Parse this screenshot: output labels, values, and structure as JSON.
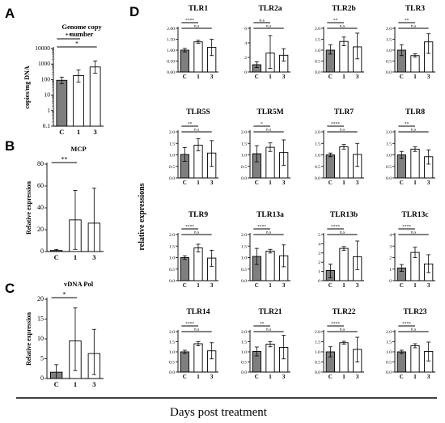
{
  "figure": {
    "panel_labels": [
      "A",
      "B",
      "C",
      "D"
    ],
    "x_caption": "Days post treatment",
    "d_ylabel": "relative expressions",
    "colors": {
      "control": "#7f7f7f",
      "treated": "#ffffff",
      "stroke": "#000000"
    }
  },
  "chart_data": [
    {
      "id": "A",
      "type": "bar",
      "title": "Genome copy number",
      "ylabel": "copies/mg DNA",
      "yscale": "log",
      "ylim": [
        0.1,
        10000
      ],
      "yticks": [
        0.1,
        1,
        10,
        100,
        1000,
        10000
      ],
      "ytick_labels": [
        "0.1",
        "1",
        "10",
        "100",
        "1000",
        "10000"
      ],
      "categories": [
        "C",
        "1",
        "3"
      ],
      "values": [
        90,
        180,
        650
      ],
      "errors": [
        [
          55,
          145
        ],
        [
          70,
          420
        ],
        [
          260,
          1600
        ]
      ],
      "annotations": [
        {
          "text": "**",
          "from": 0,
          "to": 1
        },
        {
          "text": "*",
          "from": 0,
          "to": 2
        }
      ]
    },
    {
      "id": "B",
      "type": "bar",
      "title": "MCP",
      "ylabel": "Relative expression",
      "ylim": [
        0,
        80
      ],
      "yticks": [
        0,
        20,
        40,
        60,
        80
      ],
      "ytick_labels": [
        "0",
        "20",
        "40",
        "60",
        "80"
      ],
      "categories": [
        "C",
        "1",
        "3"
      ],
      "values": [
        1,
        29,
        26
      ],
      "errors": [
        [
          0,
          2
        ],
        [
          2,
          56
        ],
        [
          0,
          58
        ]
      ],
      "annotations": [
        {
          "text": "**",
          "from": 0,
          "to": 1
        }
      ]
    },
    {
      "id": "C",
      "type": "bar",
      "title": "vDNA Pol",
      "ylabel": "Relative expression",
      "ylim": [
        0,
        20
      ],
      "yticks": [
        0,
        5,
        10,
        15,
        20
      ],
      "ytick_labels": [
        "0",
        "5",
        "10",
        "15",
        "20"
      ],
      "categories": [
        "C",
        "1",
        "3"
      ],
      "values": [
        1.6,
        9.5,
        6.3
      ],
      "errors": [
        [
          0,
          3.5
        ],
        [
          2,
          17.8
        ],
        [
          1,
          12.4
        ]
      ],
      "annotations": [
        {
          "text": "*",
          "from": 0,
          "to": 1
        }
      ]
    },
    {
      "id": "D1",
      "type": "bar",
      "title": "TLR1",
      "ylim": [
        0,
        2.0
      ],
      "yticks": [
        0,
        0.5,
        1.0,
        1.5,
        2.0
      ],
      "ytick_labels": [
        "0.00",
        "0.50",
        "1.00",
        "1.50",
        "2.00"
      ],
      "categories": [
        "C",
        "1",
        "3"
      ],
      "values": [
        1.0,
        1.38,
        1.13
      ],
      "errors": [
        [
          0.92,
          1.08
        ],
        [
          1.32,
          1.45
        ],
        [
          0.75,
          1.5
        ]
      ],
      "annotations": [
        {
          "text": "****",
          "from": 0,
          "to": 1
        },
        {
          "text": "n.s",
          "from": 0,
          "to": 2
        }
      ]
    },
    {
      "id": "D2",
      "type": "bar",
      "title": "TLR2a",
      "ylim": [
        0,
        6
      ],
      "yticks": [
        0,
        2,
        4,
        6
      ],
      "ytick_labels": [
        "0",
        "2",
        "4",
        "6"
      ],
      "categories": [
        "C",
        "1",
        "3"
      ],
      "values": [
        1.0,
        2.6,
        2.3
      ],
      "errors": [
        [
          0.6,
          1.4
        ],
        [
          0.5,
          5.0
        ],
        [
          1.5,
          3.2
        ]
      ],
      "annotations": [
        {
          "text": "n.s",
          "from": 0,
          "to": 1
        },
        {
          "text": "n.s",
          "from": 0,
          "to": 2
        }
      ]
    },
    {
      "id": "D3",
      "type": "bar",
      "title": "TLR2b",
      "ylim": [
        0,
        2.0
      ],
      "yticks": [
        0,
        0.5,
        1.0,
        1.5,
        2.0
      ],
      "ytick_labels": [
        "0.0",
        "0.5",
        "1.0",
        "1.5",
        "2.0"
      ],
      "categories": [
        "C",
        "1",
        "3"
      ],
      "values": [
        1.0,
        1.4,
        1.15
      ],
      "errors": [
        [
          0.82,
          1.25
        ],
        [
          1.2,
          1.6
        ],
        [
          0.6,
          1.78
        ]
      ],
      "annotations": [
        {
          "text": "**",
          "from": 0,
          "to": 1
        },
        {
          "text": "n.s",
          "from": 0,
          "to": 2
        }
      ]
    },
    {
      "id": "D4",
      "type": "bar",
      "title": "TLR3",
      "ylim": [
        0,
        2.0
      ],
      "yticks": [
        0,
        0.5,
        1.0,
        1.5,
        2.0
      ],
      "ytick_labels": [
        "0.0",
        "0.5",
        "1.0",
        "1.5",
        "2.0"
      ],
      "categories": [
        "C",
        "1",
        "3"
      ],
      "values": [
        1.0,
        0.75,
        1.38
      ],
      "errors": [
        [
          0.75,
          1.25
        ],
        [
          0.68,
          0.83
        ],
        [
          0.85,
          1.75
        ]
      ],
      "annotations": [
        {
          "text": "**",
          "from": 0,
          "to": 1
        },
        {
          "text": "n.s",
          "from": 0,
          "to": 2
        }
      ]
    },
    {
      "id": "D5",
      "type": "bar",
      "title": "TLR5S",
      "ylim": [
        0,
        2.0
      ],
      "yticks": [
        0,
        0.5,
        1.0,
        1.5,
        2.0
      ],
      "ytick_labels": [
        "0.0",
        "0.5",
        "1.0",
        "1.5",
        "2.0"
      ],
      "categories": [
        "C",
        "1",
        "3"
      ],
      "values": [
        1.02,
        1.42,
        1.08
      ],
      "errors": [
        [
          0.72,
          1.32
        ],
        [
          1.18,
          1.7
        ],
        [
          0.5,
          1.62
        ]
      ],
      "annotations": [
        {
          "text": "**",
          "from": 0,
          "to": 1
        },
        {
          "text": "n.s",
          "from": 0,
          "to": 2
        }
      ]
    },
    {
      "id": "D6",
      "type": "bar",
      "title": "TLR5M",
      "ylim": [
        0,
        2.0
      ],
      "yticks": [
        0,
        0.5,
        1.0,
        1.5,
        2.0
      ],
      "ytick_labels": [
        "0.0",
        "0.5",
        "1.0",
        "1.5",
        "2.0"
      ],
      "categories": [
        "C",
        "1",
        "3"
      ],
      "values": [
        1.05,
        1.33,
        1.1
      ],
      "errors": [
        [
          0.7,
          1.4
        ],
        [
          1.15,
          1.52
        ],
        [
          0.55,
          1.65
        ]
      ],
      "annotations": [
        {
          "text": "*",
          "from": 0,
          "to": 1
        },
        {
          "text": "n.s",
          "from": 0,
          "to": 2
        }
      ]
    },
    {
      "id": "D7",
      "type": "bar",
      "title": "TLR7",
      "ylim": [
        0,
        2.0
      ],
      "yticks": [
        0,
        0.5,
        1.0,
        1.5,
        2.0
      ],
      "ytick_labels": [
        "0.0",
        "0.5",
        "1.0",
        "1.5",
        "2.0"
      ],
      "categories": [
        "C",
        "1",
        "3"
      ],
      "values": [
        1.0,
        1.35,
        1.02
      ],
      "errors": [
        [
          0.92,
          1.08
        ],
        [
          1.25,
          1.45
        ],
        [
          0.5,
          1.5
        ]
      ],
      "annotations": [
        {
          "text": "****",
          "from": 0,
          "to": 1
        },
        {
          "text": "n.s",
          "from": 0,
          "to": 2
        }
      ]
    },
    {
      "id": "D8",
      "type": "bar",
      "title": "TLR8",
      "ylim": [
        0,
        2.0
      ],
      "yticks": [
        0,
        0.5,
        1.0,
        1.5,
        2.0
      ],
      "ytick_labels": [
        "0.0",
        "0.5",
        "1.0",
        "1.5",
        "2.0"
      ],
      "categories": [
        "C",
        "1",
        "3"
      ],
      "values": [
        1.0,
        1.25,
        0.92
      ],
      "errors": [
        [
          0.85,
          1.15
        ],
        [
          1.15,
          1.35
        ],
        [
          0.6,
          1.22
        ]
      ],
      "annotations": [
        {
          "text": "**",
          "from": 0,
          "to": 1
        },
        {
          "text": "n.s",
          "from": 0,
          "to": 2
        }
      ]
    },
    {
      "id": "D9",
      "type": "bar",
      "title": "TLR9",
      "ylim": [
        0,
        2.0
      ],
      "yticks": [
        0,
        0.5,
        1.0,
        1.5,
        2.0
      ],
      "ytick_labels": [
        "0.0",
        "0.5",
        "1.0",
        "1.5",
        "2.0"
      ],
      "categories": [
        "C",
        "1",
        "3"
      ],
      "values": [
        1.0,
        1.42,
        0.98
      ],
      "errors": [
        [
          0.92,
          1.08
        ],
        [
          1.25,
          1.58
        ],
        [
          0.62,
          1.32
        ]
      ],
      "annotations": [
        {
          "text": "****",
          "from": 0,
          "to": 1
        },
        {
          "text": "n.s",
          "from": 0,
          "to": 2
        }
      ]
    },
    {
      "id": "D10",
      "type": "bar",
      "title": "TLR13a",
      "ylim": [
        0,
        2.0
      ],
      "yticks": [
        0,
        0.5,
        1.0,
        1.5,
        2.0
      ],
      "ytick_labels": [
        "0.0",
        "0.5",
        "1.0",
        "1.5",
        "2.0"
      ],
      "categories": [
        "C",
        "1",
        "3"
      ],
      "values": [
        1.05,
        1.28,
        1.08
      ],
      "errors": [
        [
          0.7,
          1.4
        ],
        [
          1.2,
          1.36
        ],
        [
          0.6,
          1.55
        ]
      ],
      "annotations": [
        {
          "text": "****",
          "from": 0,
          "to": 1
        },
        {
          "text": "n.s",
          "from": 0,
          "to": 2
        }
      ]
    },
    {
      "id": "D11",
      "type": "bar",
      "title": "TLR13b",
      "ylim": [
        0,
        5
      ],
      "yticks": [
        0,
        1,
        2,
        3,
        4,
        5
      ],
      "ytick_labels": [
        "0",
        "1",
        "2",
        "3",
        "4",
        "5"
      ],
      "categories": [
        "C",
        "1",
        "3"
      ],
      "values": [
        1.1,
        3.5,
        2.6
      ],
      "errors": [
        [
          0.3,
          1.8
        ],
        [
          3.3,
          3.7
        ],
        [
          1.2,
          4.3
        ]
      ],
      "annotations": [
        {
          "text": "****",
          "from": 0,
          "to": 1
        },
        {
          "text": "n.s",
          "from": 0,
          "to": 2
        }
      ]
    },
    {
      "id": "D12",
      "type": "bar",
      "title": "TLR13c",
      "ylim": [
        0,
        4
      ],
      "yticks": [
        0,
        1,
        2,
        3,
        4
      ],
      "ytick_labels": [
        "0",
        "1",
        "2",
        "3",
        "4"
      ],
      "categories": [
        "C",
        "1",
        "3"
      ],
      "values": [
        1.1,
        2.45,
        1.45
      ],
      "errors": [
        [
          0.8,
          1.4
        ],
        [
          2.0,
          2.9
        ],
        [
          0.7,
          2.25
        ]
      ],
      "annotations": [
        {
          "text": "****",
          "from": 0,
          "to": 1
        },
        {
          "text": "n.s",
          "from": 0,
          "to": 2
        }
      ]
    },
    {
      "id": "D13",
      "type": "bar",
      "title": "TLR14",
      "ylim": [
        0,
        2.0
      ],
      "yticks": [
        0,
        0.5,
        1.0,
        1.5,
        2.0
      ],
      "ytick_labels": [
        "0.0",
        "0.5",
        "1.0",
        "1.5",
        "2.0"
      ],
      "categories": [
        "C",
        "1",
        "3"
      ],
      "values": [
        1.0,
        1.4,
        1.05
      ],
      "errors": [
        [
          0.92,
          1.08
        ],
        [
          1.3,
          1.5
        ],
        [
          0.65,
          1.45
        ]
      ],
      "annotations": [
        {
          "text": "****",
          "from": 0,
          "to": 1
        },
        {
          "text": "n.s",
          "from": 0,
          "to": 2
        }
      ]
    },
    {
      "id": "D14",
      "type": "bar",
      "title": "TLR21",
      "ylim": [
        0,
        2.0
      ],
      "yticks": [
        0,
        0.5,
        1.0,
        1.5,
        2.0
      ],
      "ytick_labels": [
        "0.0",
        "0.5",
        "1.0",
        "1.5",
        "2.0"
      ],
      "categories": [
        "C",
        "1",
        "3"
      ],
      "values": [
        1.02,
        1.38,
        1.22
      ],
      "errors": [
        [
          0.8,
          1.24
        ],
        [
          1.25,
          1.5
        ],
        [
          0.65,
          1.82
        ]
      ],
      "annotations": [
        {
          "text": "**",
          "from": 0,
          "to": 1
        },
        {
          "text": "n.s",
          "from": 0,
          "to": 2
        }
      ]
    },
    {
      "id": "D15",
      "type": "bar",
      "title": "TLR22",
      "ylim": [
        0,
        2.0
      ],
      "yticks": [
        0,
        0.5,
        1.0,
        1.5,
        2.0
      ],
      "ytick_labels": [
        "0.0",
        "0.5",
        "1.0",
        "1.5",
        "2.0"
      ],
      "categories": [
        "C",
        "1",
        "3"
      ],
      "values": [
        1.0,
        1.45,
        1.12
      ],
      "errors": [
        [
          0.75,
          1.25
        ],
        [
          1.38,
          1.52
        ],
        [
          0.5,
          1.72
        ]
      ],
      "annotations": [
        {
          "text": "****",
          "from": 0,
          "to": 1
        },
        {
          "text": "n.s",
          "from": 0,
          "to": 2
        }
      ]
    },
    {
      "id": "D16",
      "type": "bar",
      "title": "TLR23",
      "ylim": [
        0,
        2.0
      ],
      "yticks": [
        0,
        0.5,
        1.0,
        1.5,
        2.0
      ],
      "ytick_labels": [
        "0.0",
        "0.5",
        "1.0",
        "1.5",
        "2.0"
      ],
      "categories": [
        "C",
        "1",
        "3"
      ],
      "values": [
        1.0,
        1.3,
        1.02
      ],
      "errors": [
        [
          0.92,
          1.08
        ],
        [
          1.2,
          1.4
        ],
        [
          0.55,
          1.48
        ]
      ],
      "annotations": [
        {
          "text": "****",
          "from": 0,
          "to": 1
        },
        {
          "text": "n.s",
          "from": 0,
          "to": 2
        }
      ]
    }
  ]
}
